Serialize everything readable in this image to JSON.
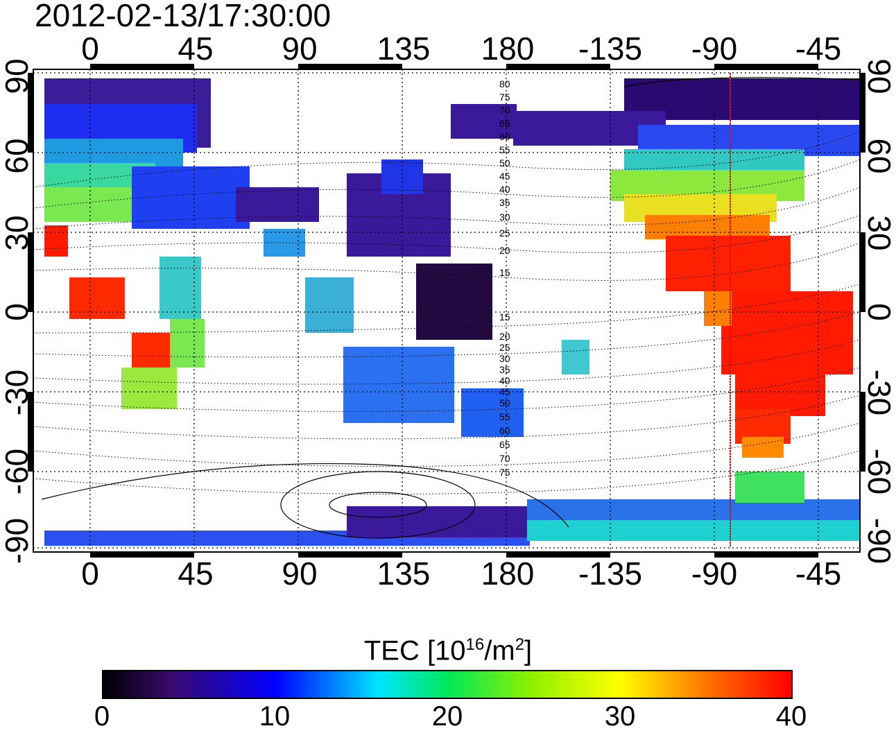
{
  "timestamp": "2012-02-13/17:30:00",
  "map": {
    "lon_ticks": [
      "0",
      "45",
      "90",
      "135",
      "180",
      "-135",
      "-90",
      "-45"
    ],
    "lat_ticks": [
      "90",
      "60",
      "30",
      "0",
      "-30",
      "-60",
      "-90"
    ],
    "lat_ticks_right": [
      "90",
      "60",
      "30",
      "0",
      "-30",
      "-60",
      "-90"
    ],
    "contour_labels": [
      "80",
      "75",
      "70",
      "65",
      "60",
      "55",
      "50",
      "45",
      "40",
      "35",
      "30",
      "25",
      "20",
      "15",
      "15",
      "20",
      "25",
      "30",
      "35",
      "40",
      "45",
      "50",
      "55",
      "60",
      "65",
      "70",
      "75"
    ],
    "terminator_line_color": "#ff0000",
    "terminator_longitude": -84
  },
  "colorbar": {
    "title_main": "TEC  [10",
    "title_sup": "16",
    "title_mid": "/m",
    "title_sup2": "2",
    "title_end": "]",
    "ticks": [
      "0",
      "10",
      "20",
      "30",
      "40"
    ],
    "range": [
      0,
      40
    ]
  }
}
